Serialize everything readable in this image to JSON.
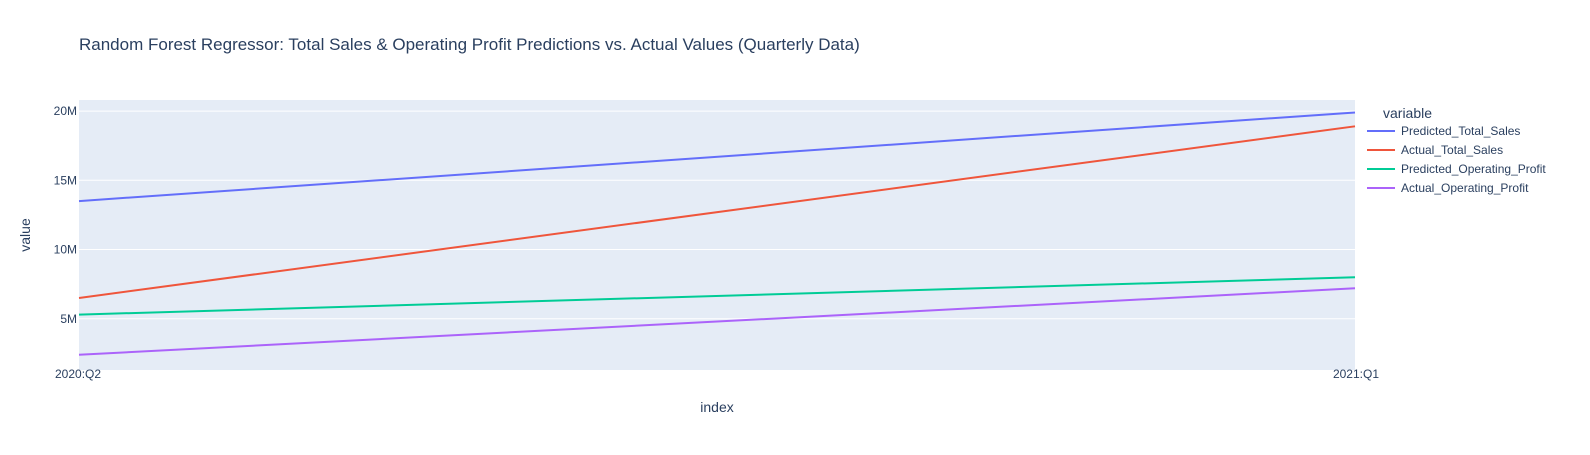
{
  "chart_data": {
    "type": "line",
    "title": "Random Forest Regressor: Total Sales & Operating Profit Predictions vs. Actual Values (Quarterly Data)",
    "xlabel": "index",
    "ylabel": "value",
    "categories": [
      "2020:Q2",
      "2021:Q1"
    ],
    "y_tick_values": [
      5000000,
      10000000,
      15000000,
      20000000
    ],
    "y_tick_labels": [
      "5M",
      "10M",
      "15M",
      "20M"
    ],
    "ylim": [
      1300000,
      20800000
    ],
    "grid": true,
    "legend": {
      "title": "variable",
      "placement": "right"
    },
    "series": [
      {
        "name": "Predicted_Total_Sales",
        "color": "#636efa",
        "values": [
          13500000,
          19900000
        ]
      },
      {
        "name": "Actual_Total_Sales",
        "color": "#EF553B",
        "values": [
          6500000,
          18900000
        ]
      },
      {
        "name": "Predicted_Operating_Profit",
        "color": "#00cc96",
        "values": [
          5300000,
          8000000
        ]
      },
      {
        "name": "Actual_Operating_Profit",
        "color": "#ab63fa",
        "values": [
          2400000,
          7200000
        ]
      }
    ]
  }
}
